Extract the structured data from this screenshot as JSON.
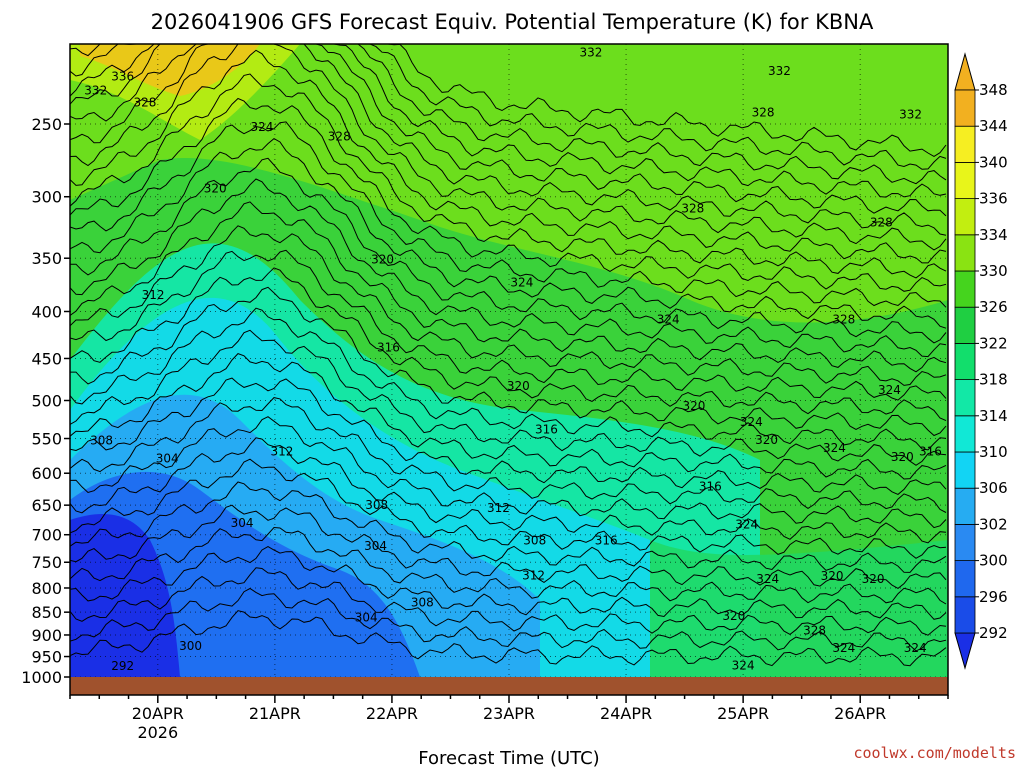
{
  "chart_data": {
    "type": "heatmap",
    "title": "2026041906 GFS Forecast Equiv. Potential Temperature (K) for KBNA",
    "xlabel": "Forecast Time (UTC)",
    "ylabel": "",
    "credit": "coolwx.com/modelts",
    "x_ticks": [
      "20APR",
      "21APR",
      "22APR",
      "23APR",
      "24APR",
      "25APR",
      "26APR"
    ],
    "x_tick_year": "2026",
    "x_range_days": [
      19.25,
      26.75
    ],
    "y_axis": "pressure (hPa), inverted, log scale",
    "y_ticks": [
      250,
      300,
      350,
      400,
      450,
      500,
      550,
      600,
      650,
      700,
      750,
      800,
      850,
      900,
      950,
      1000
    ],
    "y_range": [
      200,
      1000
    ],
    "grid": "dotted",
    "colorbar": {
      "levels": [
        292,
        296,
        300,
        302,
        306,
        310,
        314,
        318,
        322,
        326,
        330,
        334,
        336,
        340,
        344,
        348
      ],
      "colors": [
        "#1a2fe6",
        "#1a4ce8",
        "#1f68ee",
        "#2a8af2",
        "#26acf2",
        "#12d4f4",
        "#11e8d6",
        "#12e8a6",
        "#12de6c",
        "#1fcf42",
        "#45d41e",
        "#8ae312",
        "#c2ee10",
        "#e8f51a",
        "#f6ee22",
        "#f2b020"
      ],
      "placement": "right"
    },
    "contour_labels": [
      {
        "text": "332",
        "t": 19.47,
        "p": 230
      },
      {
        "text": "336",
        "t": 19.7,
        "p": 222
      },
      {
        "text": "328",
        "t": 19.89,
        "p": 237
      },
      {
        "text": "324",
        "t": 20.89,
        "p": 252
      },
      {
        "text": "328",
        "t": 21.55,
        "p": 258
      },
      {
        "text": "332",
        "t": 23.7,
        "p": 209
      },
      {
        "text": "332",
        "t": 25.31,
        "p": 219
      },
      {
        "text": "328",
        "t": 25.17,
        "p": 243
      },
      {
        "text": "332",
        "t": 26.43,
        "p": 244
      },
      {
        "text": "328",
        "t": 24.57,
        "p": 309
      },
      {
        "text": "328",
        "t": 26.18,
        "p": 320
      },
      {
        "text": "320",
        "t": 20.49,
        "p": 294
      },
      {
        "text": "320",
        "t": 21.92,
        "p": 351
      },
      {
        "text": "324",
        "t": 23.11,
        "p": 372
      },
      {
        "text": "324",
        "t": 24.36,
        "p": 408
      },
      {
        "text": "328",
        "t": 25.86,
        "p": 408
      },
      {
        "text": "312",
        "t": 19.96,
        "p": 384
      },
      {
        "text": "316",
        "t": 21.97,
        "p": 438
      },
      {
        "text": "320",
        "t": 23.08,
        "p": 482
      },
      {
        "text": "324",
        "t": 26.25,
        "p": 487
      },
      {
        "text": "320",
        "t": 24.58,
        "p": 507
      },
      {
        "text": "324",
        "t": 25.07,
        "p": 528
      },
      {
        "text": "320",
        "t": 25.2,
        "p": 552
      },
      {
        "text": "316",
        "t": 23.32,
        "p": 538
      },
      {
        "text": "308",
        "t": 19.52,
        "p": 553
      },
      {
        "text": "304",
        "t": 20.08,
        "p": 578
      },
      {
        "text": "312",
        "t": 21.06,
        "p": 568
      },
      {
        "text": "324",
        "t": 25.78,
        "p": 563
      },
      {
        "text": "320",
        "t": 26.36,
        "p": 576
      },
      {
        "text": "316",
        "t": 26.6,
        "p": 568
      },
      {
        "text": "316",
        "t": 24.72,
        "p": 620
      },
      {
        "text": "308",
        "t": 21.87,
        "p": 650
      },
      {
        "text": "312",
        "t": 22.91,
        "p": 655
      },
      {
        "text": "304",
        "t": 20.72,
        "p": 680
      },
      {
        "text": "324",
        "t": 25.03,
        "p": 682
      },
      {
        "text": "308",
        "t": 23.22,
        "p": 710
      },
      {
        "text": "316",
        "t": 23.83,
        "p": 710
      },
      {
        "text": "304",
        "t": 21.86,
        "p": 720
      },
      {
        "text": "312",
        "t": 23.21,
        "p": 775
      },
      {
        "text": "324",
        "t": 25.21,
        "p": 782
      },
      {
        "text": "320",
        "t": 25.76,
        "p": 776
      },
      {
        "text": "320",
        "t": 26.11,
        "p": 782
      },
      {
        "text": "308",
        "t": 22.26,
        "p": 830
      },
      {
        "text": "304",
        "t": 21.78,
        "p": 861
      },
      {
        "text": "320",
        "t": 24.92,
        "p": 858
      },
      {
        "text": "328",
        "t": 25.61,
        "p": 890
      },
      {
        "text": "300",
        "t": 20.28,
        "p": 925
      },
      {
        "text": "324",
        "t": 25.86,
        "p": 930
      },
      {
        "text": "324",
        "t": 26.47,
        "p": 930
      },
      {
        "text": "324",
        "t": 25.0,
        "p": 971
      },
      {
        "text": "292",
        "t": 19.7,
        "p": 973
      }
    ]
  }
}
